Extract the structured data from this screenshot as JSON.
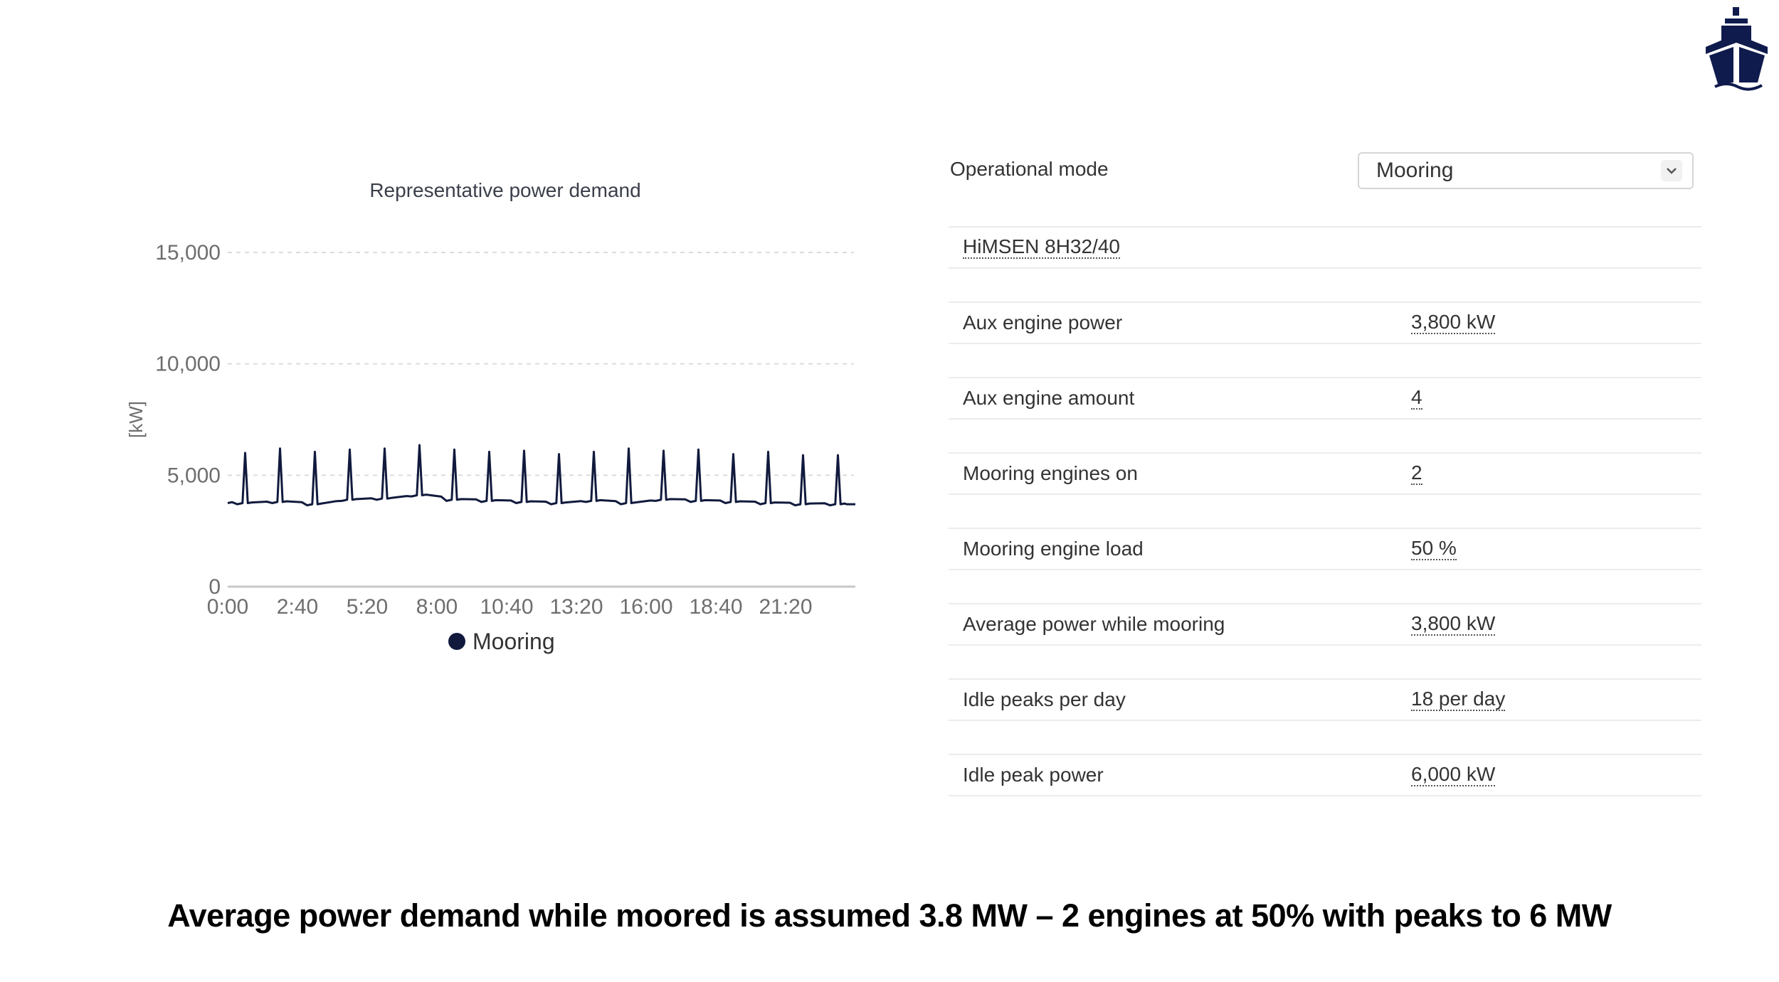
{
  "logo": {
    "icon": "ship-icon",
    "color": "#0f1b4d"
  },
  "chart": {
    "title": "Representative power demand",
    "ylabel": "[kW]",
    "legend": "Mooring"
  },
  "chart_data": {
    "type": "line",
    "title": "Representative power demand",
    "xlabel": "",
    "ylabel": "[kW]",
    "ylim": [
      0,
      15000
    ],
    "yticks": [
      0,
      5000,
      10000,
      15000
    ],
    "ytick_labels": [
      "0",
      "5,000",
      "10,000",
      "15,000"
    ],
    "xticks": [
      "0:00",
      "2:40",
      "5:20",
      "8:00",
      "10:40",
      "13:20",
      "16:00",
      "18:40",
      "21:20"
    ],
    "xlim_minutes": [
      0,
      1440
    ],
    "grid": "horizontal dashed",
    "legend_position": "bottom",
    "series": [
      {
        "name": "Mooring",
        "color": "#111a3d",
        "baseline_kw": 3800,
        "peak_count": 18,
        "peak_minutes": [
          40,
          120,
          200,
          280,
          360,
          440,
          520,
          600,
          680,
          760,
          840,
          920,
          1000,
          1080,
          1160,
          1240,
          1320,
          1400
        ],
        "peak_values_kw": [
          6000,
          6200,
          6050,
          6150,
          6200,
          6350,
          6150,
          6050,
          6100,
          5950,
          6050,
          6200,
          6100,
          6150,
          5950,
          6050,
          5900,
          5900
        ],
        "trough_values_kw": [
          3750,
          3800,
          3700,
          3900,
          3950,
          4100,
          3900,
          3850,
          3800,
          3750,
          3850,
          3750,
          3900,
          3850,
          3800,
          3750,
          3700,
          3700
        ]
      }
    ]
  },
  "panel": {
    "mode_label": "Operational mode",
    "mode_value": "Mooring",
    "engine_model": "HiMSEN 8H32/40",
    "rows": [
      {
        "label": "Aux engine power",
        "value": "3,800 kW"
      },
      {
        "label": "Aux engine amount",
        "value": "4"
      },
      {
        "label": "Mooring engines on",
        "value": "2"
      },
      {
        "label": "Mooring engine load",
        "value": "50 %"
      },
      {
        "label": "Average power while mooring",
        "value": "3,800 kW"
      },
      {
        "label": "Idle peaks per day",
        "value": "18 per day"
      },
      {
        "label": "Idle peak power",
        "value": "6,000 kW"
      }
    ]
  },
  "caption": "Average power demand while moored is assumed 3.8 MW – 2 engines at 50% with peaks to 6 MW"
}
